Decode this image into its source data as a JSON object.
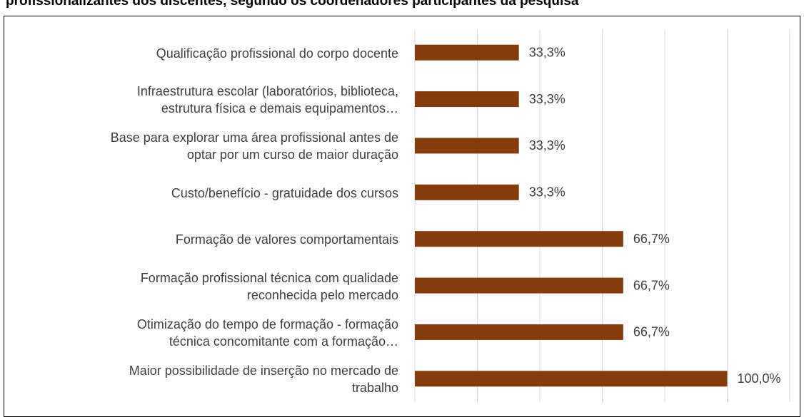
{
  "chart_data": {
    "type": "bar",
    "orientation": "horizontal",
    "title": "profissionalizantes dos discentes, segundo os coordenadores participantes da pesquisa",
    "categories": [
      "Qualificação profissional do corpo docente",
      "Infraestrutura escolar (laboratórios, biblioteca,\nestrutura física e demais equipamentos…",
      "Base para explorar uma área profissional antes de\noptar por um curso de maior duração",
      "Custo/benefício -  gratuidade dos cursos",
      "Formação de valores comportamentais",
      "Formação profissional técnica com qualidade\nreconhecida pelo mercado",
      "Otimização do tempo de formação - formação\ntécnica concomitante com a formação…",
      "Maior possibilidade de inserção no mercado de\ntrabalho"
    ],
    "values": [
      33.3,
      33.3,
      33.3,
      33.3,
      66.7,
      66.7,
      66.7,
      100
    ],
    "value_labels": [
      "33,3%",
      "33,3%",
      "33,3%",
      "33,3%",
      "66,7%",
      "66,7%",
      "66,7%",
      "100,0%"
    ],
    "color": "#843c0c",
    "xlim": [
      0,
      120
    ],
    "xticks": [
      0,
      20,
      40,
      60,
      80,
      100,
      120
    ],
    "grid": true
  }
}
